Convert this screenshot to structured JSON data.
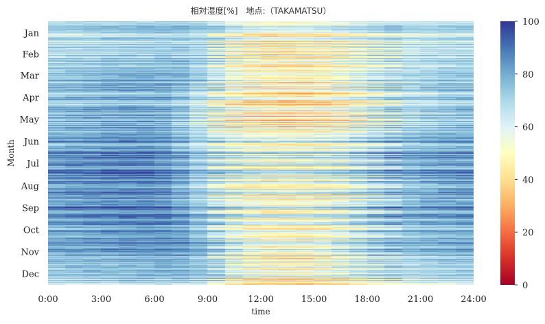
{
  "chart_data": {
    "type": "heatmap",
    "title": "相対湿度[%]　地点:（TAKAMATSU）",
    "xlabel": "time",
    "ylabel": "Month",
    "x_ticks": [
      "0:00",
      "3:00",
      "6:00",
      "9:00",
      "12:00",
      "15:00",
      "18:00",
      "21:00",
      "24:00"
    ],
    "y_ticks": [
      "Jan",
      "Feb",
      "Mar",
      "Apr",
      "May",
      "Jun",
      "Jul",
      "Aug",
      "Sep",
      "Oct",
      "Nov",
      "Dec"
    ],
    "colorbar": {
      "min": 0,
      "max": 100,
      "ticks": [
        0,
        20,
        40,
        60,
        80,
        100
      ],
      "colormap": "RdYlBu"
    },
    "hours": 24,
    "days": 365,
    "monthly_hourly_mean_humidity": {
      "Jan": [
        66,
        67,
        67,
        68,
        68,
        69,
        69,
        70,
        68,
        62,
        55,
        51,
        50,
        50,
        51,
        52,
        54,
        57,
        60,
        62,
        63,
        64,
        65,
        66
      ],
      "Feb": [
        70,
        71,
        72,
        72,
        73,
        73,
        74,
        74,
        72,
        66,
        58,
        53,
        51,
        51,
        52,
        53,
        56,
        60,
        64,
        66,
        67,
        68,
        69,
        70
      ],
      "Mar": [
        74,
        75,
        76,
        77,
        77,
        78,
        78,
        77,
        72,
        64,
        56,
        51,
        49,
        48,
        48,
        50,
        54,
        59,
        63,
        66,
        68,
        70,
        72,
        73
      ],
      "Apr": [
        72,
        73,
        74,
        75,
        76,
        77,
        76,
        72,
        65,
        57,
        50,
        46,
        44,
        43,
        43,
        45,
        49,
        54,
        59,
        63,
        66,
        68,
        70,
        71
      ],
      "May": [
        74,
        75,
        76,
        77,
        78,
        78,
        76,
        70,
        62,
        54,
        48,
        44,
        42,
        41,
        41,
        43,
        46,
        51,
        57,
        62,
        66,
        69,
        71,
        73
      ],
      "Jun": [
        80,
        81,
        82,
        83,
        84,
        84,
        82,
        77,
        70,
        64,
        60,
        58,
        57,
        57,
        58,
        59,
        62,
        66,
        70,
        74,
        76,
        78,
        79,
        80
      ],
      "Jul": [
        84,
        85,
        86,
        87,
        87,
        87,
        85,
        80,
        73,
        67,
        63,
        61,
        60,
        60,
        61,
        62,
        64,
        68,
        72,
        76,
        79,
        81,
        82,
        83
      ],
      "Aug": [
        82,
        83,
        84,
        85,
        85,
        85,
        84,
        78,
        70,
        63,
        57,
        54,
        53,
        53,
        54,
        55,
        58,
        62,
        67,
        72,
        75,
        78,
        80,
        81
      ],
      "Sep": [
        84,
        85,
        86,
        86,
        87,
        87,
        86,
        82,
        75,
        68,
        62,
        58,
        56,
        56,
        57,
        59,
        62,
        67,
        72,
        76,
        79,
        81,
        82,
        83
      ],
      "Oct": [
        80,
        81,
        82,
        83,
        84,
        84,
        84,
        82,
        76,
        68,
        60,
        55,
        53,
        53,
        54,
        56,
        60,
        65,
        70,
        73,
        75,
        77,
        78,
        79
      ],
      "Nov": [
        78,
        79,
        80,
        81,
        82,
        82,
        82,
        81,
        77,
        69,
        60,
        54,
        51,
        51,
        52,
        55,
        60,
        65,
        69,
        72,
        74,
        75,
        76,
        77
      ],
      "Dec": [
        70,
        71,
        72,
        72,
        73,
        73,
        74,
        74,
        72,
        66,
        57,
        51,
        49,
        48,
        49,
        51,
        55,
        59,
        63,
        65,
        66,
        67,
        68,
        69
      ]
    }
  }
}
